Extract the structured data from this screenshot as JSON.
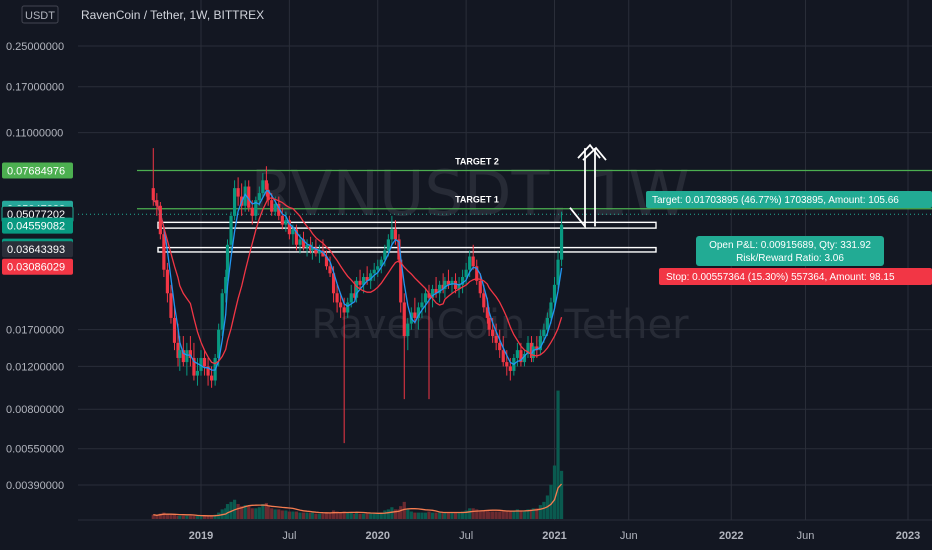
{
  "header": {
    "currency_badge": "USDT",
    "title": "RavenCoin / Tether, 1W, BITTREX"
  },
  "watermark": {
    "symbol": "RVNUSDT, 1W",
    "name": "RavenCoin / Tether"
  },
  "chart_data": {
    "type": "candlestick",
    "scale": "log",
    "y_tick_labels": [
      "0.25000000",
      "0.17000000",
      "0.11000000",
      "0.01700000",
      "0.01200000",
      "0.00800000",
      "0.00550000",
      "0.00390000"
    ],
    "y_tick_values": [
      0.25,
      0.17,
      0.11,
      0.017,
      0.012,
      0.008,
      0.0055,
      0.0039
    ],
    "x_tick_labels": [
      {
        "label": "2019",
        "bold": true,
        "t": 2019.0
      },
      {
        "label": "Jul",
        "bold": false,
        "t": 2019.5
      },
      {
        "label": "2020",
        "bold": true,
        "t": 2020.0
      },
      {
        "label": "Jul",
        "bold": false,
        "t": 2020.5
      },
      {
        "label": "2021",
        "bold": true,
        "t": 2021.0
      },
      {
        "label": "Jun",
        "bold": false,
        "t": 2021.42
      },
      {
        "label": "2022",
        "bold": true,
        "t": 2022.0
      },
      {
        "label": "Jun",
        "bold": false,
        "t": 2022.42
      },
      {
        "label": "2023",
        "bold": true,
        "t": 2023.0
      }
    ],
    "price_tags": [
      {
        "value": 0.07684976,
        "label": "0.07684976",
        "color": "#4caf50",
        "text_color": "#131722"
      },
      {
        "value": 0.05347288,
        "label": "0.05347288",
        "color": "#26a69a",
        "text_color": "#ffffff"
      },
      {
        "value": 0.05077202,
        "label": "0.05077202",
        "color": "#22ab94",
        "text_color": "#131722",
        "outline": true
      },
      {
        "value": 0.04559082,
        "label": "0.04559082",
        "color": "#089981",
        "text_color": "#ffffff"
      },
      {
        "value": 0.042,
        "label": "4d 22h",
        "color": "#089981",
        "text_color": "#ffffff"
      },
      {
        "value": 0.03643393,
        "label": "0.03643393",
        "color": "#2a2e39",
        "text_color": "#ffffff"
      },
      {
        "value": 0.03086029,
        "label": "0.03086029",
        "color": "#f23645",
        "text_color": "#ffffff"
      }
    ],
    "horizontal_lines": [
      {
        "value": 0.07684976,
        "color": "#4caf50",
        "label": "TARGET 2"
      },
      {
        "value": 0.05347288,
        "color": "#4caf50",
        "label": "TARGET 1"
      }
    ],
    "zones": [
      {
        "top": 0.047,
        "bottom": 0.0445
      },
      {
        "top": 0.037,
        "bottom": 0.0355
      }
    ],
    "position": {
      "target_label": "Target: 0.01703895 (46.77%) 1703895, Amount: 105.66",
      "open_label_1": "Open P&L: 0.00915689, Qty: 331.92",
      "open_label_2": "Risk/Reward Ratio: 3.06",
      "stop_label": "Stop: 0.00557364 (15.30%) 557364, Amount: 98.15"
    },
    "candles": [
      [
        2018.73,
        0.065,
        0.095,
        0.055,
        0.058
      ],
      [
        2018.75,
        0.058,
        0.062,
        0.05,
        0.055
      ],
      [
        2018.77,
        0.055,
        0.057,
        0.04,
        0.042
      ],
      [
        2018.79,
        0.042,
        0.045,
        0.028,
        0.03
      ],
      [
        2018.81,
        0.03,
        0.032,
        0.022,
        0.024
      ],
      [
        2018.83,
        0.024,
        0.026,
        0.018,
        0.019
      ],
      [
        2018.85,
        0.019,
        0.021,
        0.014,
        0.015
      ],
      [
        2018.87,
        0.015,
        0.018,
        0.012,
        0.013
      ],
      [
        2018.88,
        0.013,
        0.016,
        0.0115,
        0.014
      ],
      [
        2018.9,
        0.014,
        0.016,
        0.012,
        0.0125
      ],
      [
        2018.92,
        0.0125,
        0.015,
        0.011,
        0.014
      ],
      [
        2018.94,
        0.014,
        0.016,
        0.012,
        0.013
      ],
      [
        2018.96,
        0.013,
        0.015,
        0.0105,
        0.011
      ],
      [
        2018.98,
        0.011,
        0.013,
        0.01,
        0.0115
      ],
      [
        2019.0,
        0.0115,
        0.014,
        0.011,
        0.013
      ],
      [
        2019.02,
        0.013,
        0.014,
        0.011,
        0.012
      ],
      [
        2019.04,
        0.012,
        0.013,
        0.01,
        0.011
      ],
      [
        2019.06,
        0.011,
        0.012,
        0.0098,
        0.0105
      ],
      [
        2019.08,
        0.0105,
        0.0135,
        0.01,
        0.013
      ],
      [
        2019.1,
        0.013,
        0.018,
        0.012,
        0.017
      ],
      [
        2019.12,
        0.017,
        0.025,
        0.016,
        0.024
      ],
      [
        2019.14,
        0.024,
        0.03,
        0.022,
        0.028
      ],
      [
        2019.15,
        0.028,
        0.04,
        0.027,
        0.038
      ],
      [
        2019.17,
        0.038,
        0.052,
        0.036,
        0.05
      ],
      [
        2019.19,
        0.05,
        0.07,
        0.048,
        0.065
      ],
      [
        2019.21,
        0.065,
        0.072,
        0.055,
        0.06
      ],
      [
        2019.23,
        0.06,
        0.068,
        0.05,
        0.055
      ],
      [
        2019.25,
        0.055,
        0.07,
        0.052,
        0.066
      ],
      [
        2019.27,
        0.066,
        0.07,
        0.052,
        0.054
      ],
      [
        2019.29,
        0.054,
        0.058,
        0.046,
        0.05
      ],
      [
        2019.31,
        0.05,
        0.06,
        0.048,
        0.058
      ],
      [
        2019.33,
        0.058,
        0.066,
        0.055,
        0.062
      ],
      [
        2019.35,
        0.062,
        0.075,
        0.06,
        0.07
      ],
      [
        2019.37,
        0.07,
        0.08,
        0.06,
        0.064
      ],
      [
        2019.38,
        0.064,
        0.068,
        0.055,
        0.058
      ],
      [
        2019.4,
        0.058,
        0.062,
        0.05,
        0.052
      ],
      [
        2019.42,
        0.052,
        0.06,
        0.05,
        0.056
      ],
      [
        2019.44,
        0.056,
        0.06,
        0.048,
        0.05
      ],
      [
        2019.46,
        0.05,
        0.054,
        0.044,
        0.046
      ],
      [
        2019.48,
        0.046,
        0.052,
        0.043,
        0.048
      ],
      [
        2019.5,
        0.048,
        0.05,
        0.04,
        0.042
      ],
      [
        2019.52,
        0.042,
        0.046,
        0.038,
        0.044
      ],
      [
        2019.54,
        0.044,
        0.046,
        0.036,
        0.038
      ],
      [
        2019.56,
        0.038,
        0.042,
        0.035,
        0.04
      ],
      [
        2019.58,
        0.04,
        0.043,
        0.036,
        0.037
      ],
      [
        2019.6,
        0.037,
        0.04,
        0.034,
        0.038
      ],
      [
        2019.62,
        0.038,
        0.041,
        0.035,
        0.036
      ],
      [
        2019.63,
        0.036,
        0.039,
        0.033,
        0.037
      ],
      [
        2019.65,
        0.037,
        0.04,
        0.034,
        0.035
      ],
      [
        2019.67,
        0.035,
        0.038,
        0.032,
        0.036
      ],
      [
        2019.69,
        0.036,
        0.04,
        0.034,
        0.034
      ],
      [
        2019.71,
        0.034,
        0.036,
        0.03,
        0.031
      ],
      [
        2019.73,
        0.031,
        0.034,
        0.028,
        0.029
      ],
      [
        2019.75,
        0.029,
        0.031,
        0.022,
        0.024
      ],
      [
        2019.77,
        0.024,
        0.026,
        0.02,
        0.022
      ],
      [
        2019.79,
        0.022,
        0.024,
        0.019,
        0.021
      ],
      [
        2019.81,
        0.021,
        0.023,
        0.0058,
        0.02
      ],
      [
        2019.83,
        0.02,
        0.023,
        0.019,
        0.022
      ],
      [
        2019.85,
        0.022,
        0.026,
        0.021,
        0.024
      ],
      [
        2019.87,
        0.024,
        0.027,
        0.022,
        0.023
      ],
      [
        2019.88,
        0.023,
        0.028,
        0.022,
        0.027
      ],
      [
        2019.9,
        0.027,
        0.03,
        0.025,
        0.026
      ],
      [
        2019.92,
        0.026,
        0.029,
        0.024,
        0.028
      ],
      [
        2019.94,
        0.028,
        0.031,
        0.026,
        0.027
      ],
      [
        2019.96,
        0.027,
        0.03,
        0.025,
        0.029
      ],
      [
        2019.98,
        0.029,
        0.032,
        0.027,
        0.03
      ],
      [
        2020.0,
        0.03,
        0.033,
        0.028,
        0.031
      ],
      [
        2020.02,
        0.031,
        0.034,
        0.029,
        0.033
      ],
      [
        2020.04,
        0.033,
        0.038,
        0.031,
        0.036
      ],
      [
        2020.06,
        0.036,
        0.042,
        0.034,
        0.04
      ],
      [
        2020.08,
        0.04,
        0.05,
        0.038,
        0.044
      ],
      [
        2020.1,
        0.044,
        0.048,
        0.038,
        0.04
      ],
      [
        2020.12,
        0.04,
        0.042,
        0.032,
        0.033
      ],
      [
        2020.13,
        0.033,
        0.035,
        0.02,
        0.022
      ],
      [
        2020.15,
        0.022,
        0.024,
        0.0088,
        0.016
      ],
      [
        2020.17,
        0.016,
        0.019,
        0.014,
        0.018
      ],
      [
        2020.19,
        0.018,
        0.021,
        0.017,
        0.02
      ],
      [
        2020.21,
        0.02,
        0.023,
        0.018,
        0.019
      ],
      [
        2020.23,
        0.019,
        0.022,
        0.017,
        0.021
      ],
      [
        2020.25,
        0.021,
        0.024,
        0.019,
        0.022
      ],
      [
        2020.27,
        0.022,
        0.025,
        0.02,
        0.024
      ],
      [
        2020.29,
        0.024,
        0.026,
        0.0088,
        0.023
      ],
      [
        2020.31,
        0.023,
        0.026,
        0.021,
        0.025
      ],
      [
        2020.33,
        0.025,
        0.028,
        0.023,
        0.024
      ],
      [
        2020.35,
        0.024,
        0.027,
        0.022,
        0.026
      ],
      [
        2020.37,
        0.026,
        0.029,
        0.024,
        0.025
      ],
      [
        2020.38,
        0.025,
        0.028,
        0.023,
        0.027
      ],
      [
        2020.4,
        0.027,
        0.03,
        0.025,
        0.026
      ],
      [
        2020.42,
        0.026,
        0.028,
        0.024,
        0.027
      ],
      [
        2020.44,
        0.027,
        0.029,
        0.024,
        0.025
      ],
      [
        2020.46,
        0.025,
        0.028,
        0.023,
        0.026
      ],
      [
        2020.48,
        0.026,
        0.03,
        0.024,
        0.028
      ],
      [
        2020.5,
        0.028,
        0.032,
        0.026,
        0.03
      ],
      [
        2020.52,
        0.03,
        0.036,
        0.028,
        0.034
      ],
      [
        2020.54,
        0.034,
        0.038,
        0.03,
        0.031
      ],
      [
        2020.56,
        0.031,
        0.033,
        0.026,
        0.027
      ],
      [
        2020.58,
        0.027,
        0.029,
        0.023,
        0.024
      ],
      [
        2020.6,
        0.024,
        0.026,
        0.02,
        0.021
      ],
      [
        2020.62,
        0.021,
        0.023,
        0.018,
        0.019
      ],
      [
        2020.63,
        0.019,
        0.021,
        0.016,
        0.017
      ],
      [
        2020.65,
        0.017,
        0.019,
        0.015,
        0.016
      ],
      [
        2020.67,
        0.016,
        0.018,
        0.014,
        0.015
      ],
      [
        2020.69,
        0.015,
        0.017,
        0.013,
        0.014
      ],
      [
        2020.71,
        0.014,
        0.016,
        0.012,
        0.0125
      ],
      [
        2020.73,
        0.0125,
        0.014,
        0.011,
        0.012
      ],
      [
        2020.75,
        0.012,
        0.013,
        0.0105,
        0.0115
      ],
      [
        2020.77,
        0.0115,
        0.0135,
        0.011,
        0.013
      ],
      [
        2020.79,
        0.013,
        0.015,
        0.012,
        0.014
      ],
      [
        2020.81,
        0.014,
        0.015,
        0.012,
        0.0125
      ],
      [
        2020.83,
        0.0125,
        0.014,
        0.012,
        0.0135
      ],
      [
        2020.85,
        0.0135,
        0.016,
        0.013,
        0.015
      ],
      [
        2020.87,
        0.015,
        0.016,
        0.0125,
        0.013
      ],
      [
        2020.88,
        0.013,
        0.015,
        0.0125,
        0.0145
      ],
      [
        2020.9,
        0.0145,
        0.016,
        0.013,
        0.014
      ],
      [
        2020.92,
        0.014,
        0.017,
        0.0135,
        0.016
      ],
      [
        2020.94,
        0.016,
        0.018,
        0.015,
        0.017
      ],
      [
        2020.96,
        0.017,
        0.02,
        0.016,
        0.019
      ],
      [
        2020.98,
        0.019,
        0.023,
        0.018,
        0.022
      ],
      [
        2021.0,
        0.022,
        0.028,
        0.021,
        0.026
      ],
      [
        2021.02,
        0.026,
        0.036,
        0.025,
        0.033
      ],
      [
        2021.04,
        0.033,
        0.052,
        0.031,
        0.046
      ]
    ],
    "volumes": [
      [
        2018.73,
        0.4
      ],
      [
        2018.75,
        0.3
      ],
      [
        2018.77,
        0.5
      ],
      [
        2018.79,
        0.6
      ],
      [
        2018.81,
        0.5
      ],
      [
        2018.83,
        0.4
      ],
      [
        2018.85,
        0.4
      ],
      [
        2018.87,
        0.3
      ],
      [
        2018.88,
        0.3
      ],
      [
        2018.9,
        0.3
      ],
      [
        2018.92,
        0.3
      ],
      [
        2018.94,
        0.3
      ],
      [
        2018.96,
        0.3
      ],
      [
        2018.98,
        0.3
      ],
      [
        2019.0,
        0.3
      ],
      [
        2019.02,
        0.3
      ],
      [
        2019.04,
        0.3
      ],
      [
        2019.06,
        0.3
      ],
      [
        2019.08,
        0.4
      ],
      [
        2019.1,
        0.6
      ],
      [
        2019.12,
        0.9
      ],
      [
        2019.14,
        1.0
      ],
      [
        2019.15,
        1.4
      ],
      [
        2019.17,
        1.6
      ],
      [
        2019.19,
        1.8
      ],
      [
        2019.21,
        1.4
      ],
      [
        2019.23,
        1.2
      ],
      [
        2019.25,
        1.3
      ],
      [
        2019.27,
        1.2
      ],
      [
        2019.29,
        1.0
      ],
      [
        2019.31,
        1.0
      ],
      [
        2019.33,
        1.1
      ],
      [
        2019.35,
        1.4
      ],
      [
        2019.37,
        1.5
      ],
      [
        2019.38,
        1.2
      ],
      [
        2019.4,
        1.0
      ],
      [
        2019.42,
        0.9
      ],
      [
        2019.44,
        0.9
      ],
      [
        2019.46,
        0.8
      ],
      [
        2019.48,
        0.8
      ],
      [
        2019.5,
        0.7
      ],
      [
        2019.52,
        0.7
      ],
      [
        2019.54,
        0.7
      ],
      [
        2019.56,
        0.6
      ],
      [
        2019.58,
        0.6
      ],
      [
        2019.6,
        0.6
      ],
      [
        2019.62,
        0.6
      ],
      [
        2019.63,
        0.6
      ],
      [
        2019.65,
        0.5
      ],
      [
        2019.67,
        0.5
      ],
      [
        2019.69,
        0.5
      ],
      [
        2019.71,
        0.6
      ],
      [
        2019.73,
        0.6
      ],
      [
        2019.75,
        0.8
      ],
      [
        2019.77,
        0.7
      ],
      [
        2019.79,
        0.6
      ],
      [
        2019.81,
        0.7
      ],
      [
        2019.83,
        0.6
      ],
      [
        2019.85,
        0.6
      ],
      [
        2019.87,
        0.5
      ],
      [
        2019.88,
        0.6
      ],
      [
        2019.9,
        0.5
      ],
      [
        2019.92,
        0.5
      ],
      [
        2019.94,
        0.5
      ],
      [
        2019.96,
        0.5
      ],
      [
        2019.98,
        0.5
      ],
      [
        2020.0,
        0.5
      ],
      [
        2020.02,
        0.6
      ],
      [
        2020.04,
        0.8
      ],
      [
        2020.06,
        0.9
      ],
      [
        2020.08,
        1.1
      ],
      [
        2020.1,
        0.9
      ],
      [
        2020.12,
        0.9
      ],
      [
        2020.13,
        1.2
      ],
      [
        2020.15,
        1.6
      ],
      [
        2020.17,
        0.9
      ],
      [
        2020.19,
        0.7
      ],
      [
        2020.21,
        0.6
      ],
      [
        2020.23,
        0.6
      ],
      [
        2020.25,
        0.6
      ],
      [
        2020.27,
        0.6
      ],
      [
        2020.29,
        0.7
      ],
      [
        2020.31,
        0.6
      ],
      [
        2020.33,
        0.6
      ],
      [
        2020.35,
        0.6
      ],
      [
        2020.37,
        0.6
      ],
      [
        2020.38,
        0.6
      ],
      [
        2020.4,
        0.6
      ],
      [
        2020.42,
        0.6
      ],
      [
        2020.44,
        0.6
      ],
      [
        2020.46,
        0.6
      ],
      [
        2020.48,
        0.7
      ],
      [
        2020.5,
        0.8
      ],
      [
        2020.52,
        1.0
      ],
      [
        2020.54,
        1.0
      ],
      [
        2020.56,
        0.9
      ],
      [
        2020.58,
        0.8
      ],
      [
        2020.6,
        0.8
      ],
      [
        2020.62,
        0.8
      ],
      [
        2020.63,
        0.7
      ],
      [
        2020.65,
        0.7
      ],
      [
        2020.67,
        0.7
      ],
      [
        2020.69,
        0.7
      ],
      [
        2020.71,
        0.7
      ],
      [
        2020.73,
        0.7
      ],
      [
        2020.75,
        0.8
      ],
      [
        2020.77,
        0.8
      ],
      [
        2020.79,
        0.9
      ],
      [
        2020.81,
        0.8
      ],
      [
        2020.83,
        0.8
      ],
      [
        2020.85,
        0.9
      ],
      [
        2020.87,
        0.9
      ],
      [
        2020.88,
        1.0
      ],
      [
        2020.9,
        1.0
      ],
      [
        2020.92,
        1.3
      ],
      [
        2020.94,
        1.6
      ],
      [
        2020.96,
        2.2
      ],
      [
        2020.98,
        3.2
      ],
      [
        2021.0,
        5.0
      ],
      [
        2021.02,
        12.0
      ],
      [
        2021.04,
        4.5
      ]
    ]
  },
  "colors": {
    "background": "#131722",
    "up": "#089981",
    "down": "#f23645",
    "grid": "#2a2e39",
    "ma_fast": "#2196f3",
    "ma_slow": "#f23645"
  }
}
